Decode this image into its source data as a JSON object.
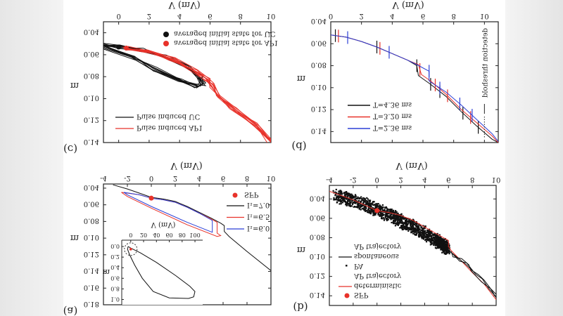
{
  "figure": {
    "orientation": "vertically flipped",
    "colors": {
      "black": "#111111",
      "red": "#e8322a",
      "blue": "#2b3fd6",
      "gray_margin": "#e6e6e6"
    }
  },
  "chart_data": [
    {
      "panel": "(a)",
      "type": "line",
      "xlabel": "V (mV)",
      "ylabel": "m",
      "xlim": [
        -4,
        10
      ],
      "ylim": [
        0.035,
        0.18
      ],
      "xticks": [
        "-4",
        "-2",
        "0",
        "2",
        "4",
        "6",
        "8",
        "10"
      ],
      "yticks": [
        "0.04",
        "0.06",
        "0.08",
        "0.10",
        "0.12",
        "0.14",
        "0.16",
        "0.18"
      ],
      "markers": [
        {
          "name": "SFP",
          "x": 0,
          "y": 0.052,
          "color": "#e8322a"
        }
      ],
      "series": [
        {
          "name": "I₁=7.0",
          "color": "#111111",
          "points": [
            [
              -3.2,
              0.036
            ],
            [
              -2,
              0.041
            ],
            [
              -1,
              0.046
            ],
            [
              0,
              0.051
            ],
            [
              1,
              0.053
            ],
            [
              2,
              0.056
            ],
            [
              3,
              0.062
            ],
            [
              4,
              0.069
            ],
            [
              5,
              0.076
            ],
            [
              5.8,
              0.082
            ],
            [
              6.1,
              0.085
            ],
            [
              6.1,
              0.092
            ],
            [
              6.5,
              0.098
            ],
            [
              8,
              0.116
            ],
            [
              10,
              0.139
            ]
          ]
        },
        {
          "name": "I₁=6.5",
          "color": "#e8322a",
          "points": [
            [
              0,
              0.052
            ],
            [
              1,
              0.054
            ],
            [
              2,
              0.057
            ],
            [
              3,
              0.063
            ],
            [
              4,
              0.07
            ],
            [
              5,
              0.077
            ],
            [
              5.5,
              0.081
            ],
            [
              5.5,
              0.094
            ],
            [
              5.8,
              0.097
            ],
            [
              5.5,
              0.098
            ],
            [
              3,
              0.084
            ],
            [
              0,
              0.064
            ],
            [
              -2,
              0.05
            ],
            [
              -2.5,
              0.045
            ],
            [
              -1,
              0.048
            ],
            [
              0,
              0.052
            ]
          ]
        },
        {
          "name": "I₁=6.0",
          "color": "#2b3fd6",
          "points": [
            [
              0,
              0.052
            ],
            [
              1,
              0.054
            ],
            [
              2,
              0.057
            ],
            [
              3,
              0.063
            ],
            [
              4,
              0.07
            ],
            [
              5,
              0.078
            ],
            [
              5.1,
              0.079
            ],
            [
              5.1,
              0.093
            ],
            [
              3,
              0.081
            ],
            [
              0,
              0.062
            ],
            [
              -2,
              0.048
            ],
            [
              -2.3,
              0.045
            ],
            [
              -1,
              0.048
            ],
            [
              0,
              0.052
            ]
          ]
        }
      ],
      "inset": {
        "xlabel": "V (mV)",
        "ylabel": "m",
        "xlim": [
          -14,
          112
        ],
        "ylim": [
          -0.12,
          1.1
        ],
        "xticks": [
          "0",
          "20",
          "40",
          "60",
          "80",
          "100"
        ],
        "yticks": [
          "0.0",
          "0.2",
          "0.4",
          "0.6",
          "0.8",
          "1.0"
        ],
        "points": [
          [
            -4,
            0.0
          ],
          [
            0,
            0.03
          ],
          [
            15,
            0.12
          ],
          [
            40,
            0.3
          ],
          [
            70,
            0.55
          ],
          [
            92,
            0.75
          ],
          [
            100,
            0.85
          ],
          [
            98,
            0.95
          ],
          [
            90,
            0.98
          ],
          [
            60,
            0.97
          ],
          [
            35,
            0.85
          ],
          [
            18,
            0.6
          ],
          [
            6,
            0.35
          ],
          [
            -2,
            0.15
          ],
          [
            -5,
            0.05
          ],
          [
            -4,
            0.0
          ]
        ],
        "sfp": {
          "x": 0,
          "y": 0.05
        }
      }
    },
    {
      "panel": "(b)",
      "type": "scatter",
      "xlabel": "V (mV)",
      "ylabel": "m",
      "xlim": [
        -4,
        10
      ],
      "ylim": [
        0.026,
        0.15
      ],
      "xticks": [
        "-4",
        "-2",
        "0",
        "2",
        "4",
        "6",
        "8",
        "10"
      ],
      "yticks": [
        "0.04",
        "0.06",
        "0.08",
        "0.10",
        "0.12",
        "0.14"
      ],
      "legend": [
        {
          "label": "SFP",
          "kind": "marker",
          "color": "#e8322a"
        },
        {
          "label": "deterministic",
          "label2": "AP trajectory",
          "kind": "line",
          "color": "#e8322a"
        },
        {
          "label": "PA",
          "kind": "dot",
          "color": "#111111"
        },
        {
          "label": "spontaneous",
          "label2": "AP trajectory",
          "kind": "line",
          "color": "#111111"
        }
      ],
      "markers": [
        {
          "name": "SFP",
          "x": 0,
          "y": 0.052,
          "color": "#e8322a"
        }
      ],
      "pa_cloud_centerline": [
        [
          -3.5,
          0.036
        ],
        [
          -1,
          0.046
        ],
        [
          1,
          0.056
        ],
        [
          3,
          0.069
        ],
        [
          5,
          0.083
        ],
        [
          6,
          0.092
        ]
      ],
      "pa_cloud_halfwidth": 0.008,
      "series": [
        {
          "name": "deterministic AP trajectory",
          "color": "#e8322a",
          "points": [
            [
              -4,
              0.032
            ],
            [
              -2,
              0.041
            ],
            [
              0,
              0.052
            ],
            [
              1,
              0.054
            ],
            [
              2,
              0.057
            ],
            [
              3,
              0.062
            ],
            [
              4,
              0.069
            ],
            [
              5,
              0.076
            ],
            [
              6,
              0.083
            ],
            [
              6,
              0.089
            ],
            [
              6.2,
              0.093
            ],
            [
              7,
              0.103
            ],
            [
              8,
              0.116
            ],
            [
              9,
              0.128
            ],
            [
              10,
              0.144
            ]
          ]
        },
        {
          "name": "spontaneous AP trajectory",
          "color": "#111111",
          "points": [
            [
              6,
              0.093
            ],
            [
              6.5,
              0.098
            ],
            [
              7,
              0.103
            ],
            [
              7.5,
              0.108
            ],
            [
              8,
              0.114
            ],
            [
              8.5,
              0.118
            ],
            [
              9,
              0.124
            ],
            [
              9.5,
              0.132
            ],
            [
              10,
              0.142
            ]
          ]
        }
      ]
    },
    {
      "panel": "(c)",
      "type": "line",
      "xlabel": "V (mV)",
      "ylabel": "m",
      "xlim": [
        -1,
        10
      ],
      "ylim": [
        0.03,
        0.14
      ],
      "xticks": [
        "0",
        "2",
        "4",
        "6",
        "8",
        "10"
      ],
      "yticks": [
        "0.04",
        "0.06",
        "0.08",
        "0.10",
        "0.12",
        "0.14"
      ],
      "markers": [
        {
          "name": "averaged initial state for UC",
          "x": 0,
          "y": 0.053,
          "color": "#111111"
        },
        {
          "name": "averaged initial state for AP1",
          "x": 0.5,
          "y": 0.054,
          "color": "#e8322a"
        }
      ],
      "series": [
        {
          "name": "Pulse induced UC",
          "color": "#111111",
          "points": [
            [
              -1,
              0.051
            ],
            [
              0,
              0.053
            ],
            [
              1.5,
              0.056
            ],
            [
              3,
              0.062
            ],
            [
              4.5,
              0.072
            ],
            [
              5.3,
              0.08
            ],
            [
              5.5,
              0.087
            ],
            [
              5.2,
              0.089
            ],
            [
              4,
              0.083
            ],
            [
              2.5,
              0.073
            ],
            [
              1,
              0.063
            ],
            [
              -1,
              0.052
            ]
          ]
        },
        {
          "name": "Pulse induced AP1",
          "color": "#e8322a",
          "points": [
            [
              0.5,
              0.054
            ],
            [
              2,
              0.057
            ],
            [
              3.5,
              0.064
            ],
            [
              5,
              0.075
            ],
            [
              5.8,
              0.082
            ],
            [
              6.2,
              0.088
            ],
            [
              6.5,
              0.098
            ],
            [
              7.5,
              0.108
            ],
            [
              9,
              0.124
            ],
            [
              10,
              0.139
            ]
          ]
        }
      ]
    },
    {
      "panel": "(d)",
      "type": "line",
      "xlabel": "V (mV)",
      "ylabel": "m",
      "xlim": [
        0,
        10.9
      ],
      "ylim": [
        0.04,
        0.15
      ],
      "xticks": [
        "0",
        "2",
        "4",
        "6",
        "8",
        "10"
      ],
      "yticks": [
        "0.04",
        "0.06",
        "0.08",
        "0.10",
        "0.12",
        "0.14"
      ],
      "annotation": {
        "text": "detection threshold",
        "x": 10
      },
      "series": [
        {
          "name": "T=4.36 ms",
          "color": "#111111",
          "errorbars_x": [
            0.3,
            3,
            5.6,
            6.5,
            7.1,
            8.6,
            9.6
          ],
          "points": [
            [
              0,
              0.052
            ],
            [
              1,
              0.054
            ],
            [
              2,
              0.058
            ],
            [
              3,
              0.063
            ],
            [
              4,
              0.069
            ],
            [
              5,
              0.075
            ],
            [
              5.6,
              0.08
            ],
            [
              5.7,
              0.089
            ],
            [
              6.5,
              0.097
            ],
            [
              7.5,
              0.108
            ],
            [
              8.5,
              0.122
            ],
            [
              9.5,
              0.135
            ],
            [
              10.5,
              0.147
            ],
            [
              10.9,
              0.15
            ]
          ]
        },
        {
          "name": "T=3.20 ms",
          "color": "#e8322a",
          "errorbars_x": [
            0.5,
            3.2,
            5.8,
            6.8,
            7.6,
            9.1
          ],
          "points": [
            [
              0,
              0.052
            ],
            [
              1,
              0.054
            ],
            [
              2,
              0.058
            ],
            [
              3,
              0.063
            ],
            [
              4,
              0.069
            ],
            [
              5,
              0.075
            ],
            [
              5.7,
              0.079
            ],
            [
              5.9,
              0.088
            ],
            [
              6.5,
              0.094
            ],
            [
              7.5,
              0.106
            ],
            [
              8.5,
              0.12
            ],
            [
              9.5,
              0.132
            ],
            [
              10.5,
              0.144
            ],
            [
              10.9,
              0.15
            ]
          ]
        },
        {
          "name": "T=2.36 ms",
          "color": "#2b3fd6",
          "errorbars_x": [
            1.1,
            3.8,
            6.4,
            7.1,
            8.4,
            9.2
          ],
          "points": [
            [
              0,
              0.052
            ],
            [
              1,
              0.054
            ],
            [
              2,
              0.058
            ],
            [
              3,
              0.063
            ],
            [
              4,
              0.069
            ],
            [
              5,
              0.075
            ],
            [
              5.6,
              0.079
            ],
            [
              6.4,
              0.085
            ],
            [
              6.4,
              0.094
            ],
            [
              7.5,
              0.104
            ],
            [
              8.5,
              0.116
            ],
            [
              9.5,
              0.129
            ],
            [
              10.5,
              0.142
            ],
            [
              10.9,
              0.149
            ]
          ]
        }
      ]
    }
  ]
}
